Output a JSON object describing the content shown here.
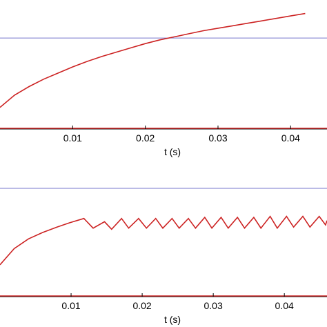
{
  "colors": {
    "series": "#cc2222",
    "reference": "#7777cc",
    "axis": "#000000"
  },
  "chart_data": [
    {
      "type": "line",
      "xlabel": "t (s)",
      "xlim": [
        0.0,
        0.045
      ],
      "ylim": [
        0.0,
        1.0
      ],
      "xticks": [
        0.01,
        0.02,
        0.03,
        0.04
      ],
      "xtick_labels": [
        "0.01",
        "0.02",
        "0.03",
        "0.04"
      ],
      "reference_lines": [
        {
          "y": 0.735
        },
        {
          "y": 0.0
        }
      ],
      "series": [
        {
          "x": [
            0.0,
            0.002,
            0.004,
            0.006,
            0.008,
            0.01,
            0.012,
            0.014,
            0.016,
            0.018,
            0.02,
            0.022,
            0.024,
            0.026,
            0.028,
            0.03,
            0.032,
            0.034,
            0.036,
            0.038,
            0.04,
            0.042
          ],
          "y": [
            0.17,
            0.27,
            0.34,
            0.4,
            0.45,
            0.5,
            0.545,
            0.585,
            0.62,
            0.655,
            0.69,
            0.72,
            0.745,
            0.77,
            0.795,
            0.815,
            0.835,
            0.855,
            0.875,
            0.895,
            0.915,
            0.935
          ]
        }
      ]
    },
    {
      "type": "line",
      "xlabel": "t (s)",
      "xlim": [
        0.0,
        0.046
      ],
      "ylim": [
        0.0,
        1.0
      ],
      "xticks": [
        0.01,
        0.02,
        0.03,
        0.04
      ],
      "xtick_labels": [
        "0.01",
        "0.02",
        "0.03",
        "0.04"
      ],
      "reference_lines": [
        {
          "y": 1.0
        },
        {
          "y": 0.0
        }
      ],
      "series": [
        {
          "x": [
            0.0,
            0.002,
            0.004,
            0.006,
            0.008,
            0.0098,
            0.0118,
            0.0131,
            0.0147,
            0.0157,
            0.0171,
            0.0181,
            0.0195,
            0.0206,
            0.0219,
            0.0229,
            0.0242,
            0.0252,
            0.0265,
            0.0275,
            0.0288,
            0.0298,
            0.0311,
            0.0321,
            0.0334,
            0.0344,
            0.0357,
            0.0367,
            0.038,
            0.039,
            0.0403,
            0.0413,
            0.0426,
            0.0436,
            0.0449,
            0.0458,
            0.046
          ],
          "y": [
            0.29,
            0.44,
            0.53,
            0.59,
            0.64,
            0.68,
            0.72,
            0.63,
            0.69,
            0.62,
            0.72,
            0.63,
            0.72,
            0.63,
            0.72,
            0.63,
            0.72,
            0.63,
            0.72,
            0.63,
            0.73,
            0.63,
            0.73,
            0.63,
            0.73,
            0.63,
            0.73,
            0.63,
            0.74,
            0.63,
            0.74,
            0.64,
            0.74,
            0.64,
            0.74,
            0.66,
            0.7
          ]
        }
      ]
    }
  ]
}
